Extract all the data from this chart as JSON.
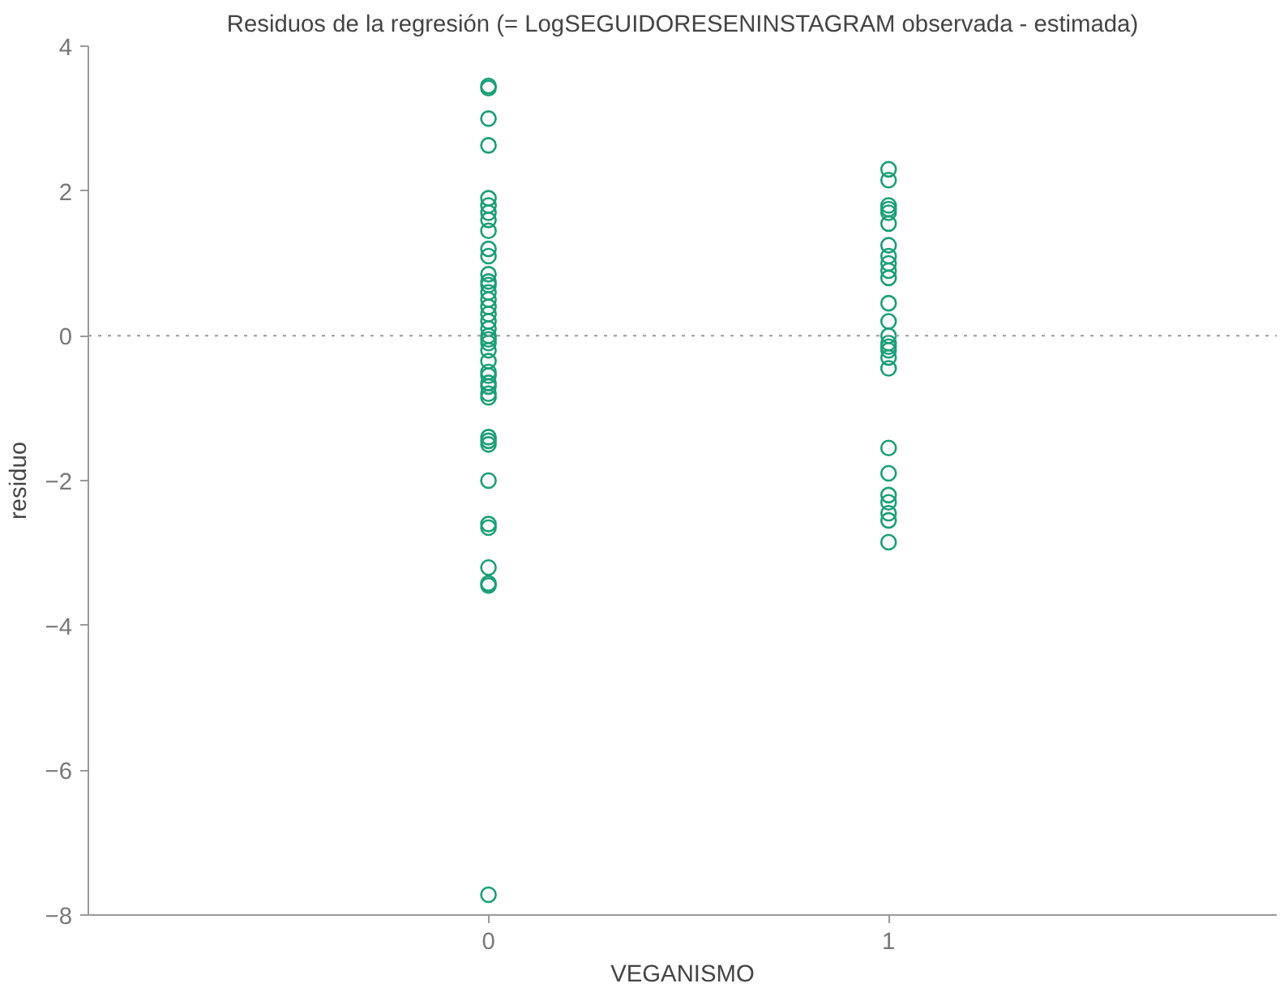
{
  "chart_data": {
    "type": "scatter",
    "title": "Residuos de la regresión (= LogSEGUIDORESENINSTAGRAM observada - estimada)",
    "xlabel": "VEGANISMO",
    "ylabel": "residuo",
    "categories": [
      "0",
      "1"
    ],
    "ylim": [
      -8,
      4
    ],
    "yticks": [
      -8,
      -6,
      -4,
      -2,
      0,
      2,
      4
    ],
    "grid": false,
    "marker": "circle",
    "ref_lines": [
      {
        "axis": "y",
        "value": 0,
        "label": null,
        "line_style": "dotted",
        "color": "#999999"
      }
    ],
    "series": [
      {
        "color": "#1b9e77",
        "x": [
          "0",
          "0",
          "0",
          "0",
          "0",
          "0",
          "0",
          "0",
          "0",
          "0",
          "0",
          "0",
          "0",
          "0",
          "0",
          "0",
          "0",
          "0",
          "0",
          "0",
          "0",
          "0",
          "0",
          "0",
          "0",
          "0",
          "0",
          "0",
          "0",
          "0",
          "0",
          "0",
          "0",
          "0",
          "0",
          "0",
          "0",
          "0",
          "0",
          "0",
          "0",
          "1",
          "1",
          "1",
          "1",
          "1",
          "1",
          "1",
          "1",
          "1",
          "1",
          "1",
          "1",
          "1",
          "1",
          "1",
          "1",
          "1",
          "1",
          "1",
          "1",
          "1",
          "1",
          "1",
          "1",
          "1",
          "1"
        ],
        "values": [
          3.45,
          3.42,
          3.0,
          2.63,
          1.9,
          1.8,
          1.7,
          1.6,
          1.45,
          1.2,
          1.1,
          0.85,
          0.75,
          0.7,
          0.6,
          0.5,
          0.4,
          0.3,
          0.2,
          0.1,
          0.0,
          -0.05,
          -0.1,
          -0.2,
          -0.35,
          -0.5,
          -0.55,
          -0.65,
          -0.7,
          -0.8,
          -0.85,
          -1.4,
          -1.45,
          -1.5,
          -2.0,
          -2.6,
          -2.65,
          -3.2,
          -3.42,
          -3.45,
          -7.72,
          2.3,
          2.15,
          1.8,
          1.75,
          1.7,
          1.55,
          1.25,
          1.1,
          1.0,
          0.9,
          0.8,
          0.45,
          0.2,
          0.0,
          -0.1,
          -0.15,
          -0.2,
          -0.3,
          -0.45,
          -1.55,
          -1.9,
          -2.2,
          -2.3,
          -2.45,
          -2.55,
          -2.85
        ]
      }
    ]
  }
}
